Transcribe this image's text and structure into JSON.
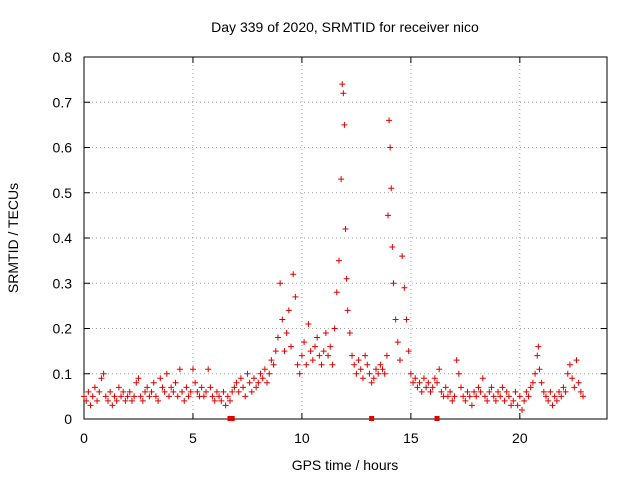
{
  "chart_data": {
    "type": "scatter",
    "title": "Day 339 of 2020, SRMTID for receiver nico",
    "xlabel": "GPS time / hours",
    "ylabel": "SRMTID / TECUs",
    "xlim": [
      0,
      24
    ],
    "ylim": [
      0,
      0.8
    ],
    "x_ticks": [
      0,
      5,
      10,
      15,
      20
    ],
    "x_tick_labels": [
      "0",
      "5",
      "10",
      "15",
      "20"
    ],
    "y_ticks": [
      0,
      0.1,
      0.2,
      0.3,
      0.4,
      0.5,
      0.6,
      0.7,
      0.8
    ],
    "y_tick_labels": [
      "0",
      "0.1",
      "0.2",
      "0.3",
      "0.4",
      "0.5",
      "0.6",
      "0.7",
      "0.8"
    ],
    "grid": true,
    "marker": "+",
    "series_color": "#e00000",
    "axis_marks_x": [
      6.7,
      6.8,
      13.2,
      16.2
    ],
    "series": [
      {
        "name": "SRMTID",
        "points": [
          [
            0.0,
            0.05
          ],
          [
            0.1,
            0.04
          ],
          [
            0.2,
            0.06
          ],
          [
            0.3,
            0.03
          ],
          [
            0.4,
            0.05
          ],
          [
            0.5,
            0.07
          ],
          [
            0.6,
            0.04
          ],
          [
            0.7,
            0.06
          ],
          [
            0.8,
            0.09
          ],
          [
            0.9,
            0.1
          ],
          [
            1.0,
            0.05
          ],
          [
            1.1,
            0.04
          ],
          [
            1.2,
            0.06
          ],
          [
            1.3,
            0.03
          ],
          [
            1.4,
            0.05
          ],
          [
            1.5,
            0.04
          ],
          [
            1.6,
            0.07
          ],
          [
            1.7,
            0.05
          ],
          [
            1.8,
            0.06
          ],
          [
            1.9,
            0.04
          ],
          [
            2.0,
            0.05
          ],
          [
            2.1,
            0.06
          ],
          [
            2.2,
            0.04
          ],
          [
            2.3,
            0.05
          ],
          [
            2.4,
            0.08
          ],
          [
            2.5,
            0.09
          ],
          [
            2.6,
            0.05
          ],
          [
            2.7,
            0.04
          ],
          [
            2.8,
            0.06
          ],
          [
            2.9,
            0.07
          ],
          [
            3.0,
            0.05
          ],
          [
            3.1,
            0.06
          ],
          [
            3.2,
            0.08
          ],
          [
            3.3,
            0.05
          ],
          [
            3.4,
            0.04
          ],
          [
            3.5,
            0.09
          ],
          [
            3.6,
            0.07
          ],
          [
            3.7,
            0.06
          ],
          [
            3.8,
            0.1
          ],
          [
            3.9,
            0.05
          ],
          [
            4.0,
            0.07
          ],
          [
            4.1,
            0.06
          ],
          [
            4.2,
            0.08
          ],
          [
            4.3,
            0.05
          ],
          [
            4.4,
            0.11
          ],
          [
            4.5,
            0.06
          ],
          [
            4.6,
            0.04
          ],
          [
            4.7,
            0.07
          ],
          [
            4.8,
            0.05
          ],
          [
            4.9,
            0.06
          ],
          [
            5.0,
            0.11
          ],
          [
            5.1,
            0.08
          ],
          [
            5.2,
            0.06
          ],
          [
            5.3,
            0.05
          ],
          [
            5.4,
            0.07
          ],
          [
            5.5,
            0.05
          ],
          [
            5.6,
            0.06
          ],
          [
            5.7,
            0.11
          ],
          [
            5.8,
            0.07
          ],
          [
            5.9,
            0.05
          ],
          [
            6.0,
            0.04
          ],
          [
            6.1,
            0.06
          ],
          [
            6.2,
            0.05
          ],
          [
            6.3,
            0.04
          ],
          [
            6.4,
            0.06
          ],
          [
            6.5,
            0.03
          ],
          [
            6.6,
            0.05
          ],
          [
            6.7,
            0.04
          ],
          [
            6.8,
            0.06
          ],
          [
            6.9,
            0.07
          ],
          [
            7.0,
            0.08
          ],
          [
            7.1,
            0.06
          ],
          [
            7.2,
            0.09
          ],
          [
            7.3,
            0.07
          ],
          [
            7.4,
            0.05
          ],
          [
            7.5,
            0.1
          ],
          [
            7.6,
            0.08
          ],
          [
            7.7,
            0.06
          ],
          [
            7.8,
            0.09
          ],
          [
            7.9,
            0.07
          ],
          [
            8.0,
            0.08
          ],
          [
            8.1,
            0.1
          ],
          [
            8.2,
            0.09
          ],
          [
            8.3,
            0.11
          ],
          [
            8.4,
            0.08
          ],
          [
            8.5,
            0.1
          ],
          [
            8.6,
            0.13
          ],
          [
            8.7,
            0.12
          ],
          [
            8.8,
            0.15
          ],
          [
            8.9,
            0.18
          ],
          [
            9.0,
            0.3
          ],
          [
            9.1,
            0.22
          ],
          [
            9.2,
            0.15
          ],
          [
            9.3,
            0.19
          ],
          [
            9.4,
            0.24
          ],
          [
            9.5,
            0.16
          ],
          [
            9.6,
            0.32
          ],
          [
            9.7,
            0.27
          ],
          [
            9.8,
            0.12
          ],
          [
            9.9,
            0.1
          ],
          [
            10.0,
            0.14
          ],
          [
            10.1,
            0.17
          ],
          [
            10.2,
            0.12
          ],
          [
            10.3,
            0.21
          ],
          [
            10.4,
            0.15
          ],
          [
            10.5,
            0.13
          ],
          [
            10.6,
            0.16
          ],
          [
            10.7,
            0.18
          ],
          [
            10.8,
            0.14
          ],
          [
            10.9,
            0.12
          ],
          [
            11.0,
            0.15
          ],
          [
            11.1,
            0.19
          ],
          [
            11.2,
            0.14
          ],
          [
            11.3,
            0.16
          ],
          [
            11.4,
            0.12
          ],
          [
            11.5,
            0.2
          ],
          [
            11.6,
            0.28
          ],
          [
            11.7,
            0.35
          ],
          [
            11.8,
            0.53
          ],
          [
            11.85,
            0.74
          ],
          [
            11.9,
            0.72
          ],
          [
            11.95,
            0.65
          ],
          [
            12.0,
            0.42
          ],
          [
            12.05,
            0.31
          ],
          [
            12.1,
            0.24
          ],
          [
            12.2,
            0.19
          ],
          [
            12.3,
            0.14
          ],
          [
            12.4,
            0.12
          ],
          [
            12.5,
            0.1
          ],
          [
            12.6,
            0.13
          ],
          [
            12.7,
            0.11
          ],
          [
            12.8,
            0.09
          ],
          [
            12.9,
            0.14
          ],
          [
            13.0,
            0.12
          ],
          [
            13.1,
            0.1
          ],
          [
            13.2,
            0.08
          ],
          [
            13.3,
            0.09
          ],
          [
            13.4,
            0.11
          ],
          [
            13.5,
            0.1
          ],
          [
            13.6,
            0.12
          ],
          [
            13.7,
            0.11
          ],
          [
            13.8,
            0.1
          ],
          [
            13.9,
            0.14
          ],
          [
            13.95,
            0.45
          ],
          [
            14.0,
            0.66
          ],
          [
            14.05,
            0.6
          ],
          [
            14.1,
            0.51
          ],
          [
            14.15,
            0.38
          ],
          [
            14.2,
            0.3
          ],
          [
            14.3,
            0.22
          ],
          [
            14.4,
            0.17
          ],
          [
            14.5,
            0.13
          ],
          [
            14.6,
            0.36
          ],
          [
            14.7,
            0.29
          ],
          [
            14.8,
            0.22
          ],
          [
            14.9,
            0.15
          ],
          [
            15.0,
            0.1
          ],
          [
            15.1,
            0.08
          ],
          [
            15.2,
            0.09
          ],
          [
            15.3,
            0.07
          ],
          [
            15.4,
            0.08
          ],
          [
            15.5,
            0.06
          ],
          [
            15.6,
            0.09
          ],
          [
            15.7,
            0.07
          ],
          [
            15.8,
            0.08
          ],
          [
            15.9,
            0.06
          ],
          [
            16.0,
            0.07
          ],
          [
            16.1,
            0.09
          ],
          [
            16.2,
            0.08
          ],
          [
            16.3,
            0.11
          ],
          [
            16.4,
            0.06
          ],
          [
            16.5,
            0.05
          ],
          [
            16.6,
            0.07
          ],
          [
            16.7,
            0.05
          ],
          [
            16.8,
            0.06
          ],
          [
            16.9,
            0.04
          ],
          [
            17.0,
            0.05
          ],
          [
            17.1,
            0.13
          ],
          [
            17.2,
            0.1
          ],
          [
            17.3,
            0.07
          ],
          [
            17.4,
            0.05
          ],
          [
            17.5,
            0.04
          ],
          [
            17.6,
            0.06
          ],
          [
            17.7,
            0.05
          ],
          [
            17.8,
            0.03
          ],
          [
            17.9,
            0.06
          ],
          [
            18.0,
            0.05
          ],
          [
            18.1,
            0.07
          ],
          [
            18.2,
            0.06
          ],
          [
            18.3,
            0.09
          ],
          [
            18.4,
            0.05
          ],
          [
            18.5,
            0.04
          ],
          [
            18.6,
            0.06
          ],
          [
            18.7,
            0.07
          ],
          [
            18.8,
            0.05
          ],
          [
            18.9,
            0.04
          ],
          [
            19.0,
            0.06
          ],
          [
            19.1,
            0.05
          ],
          [
            19.2,
            0.07
          ],
          [
            19.3,
            0.04
          ],
          [
            19.4,
            0.06
          ],
          [
            19.5,
            0.05
          ],
          [
            19.6,
            0.03
          ],
          [
            19.7,
            0.04
          ],
          [
            19.8,
            0.06
          ],
          [
            19.9,
            0.03
          ],
          [
            20.0,
            0.05
          ],
          [
            20.1,
            0.02
          ],
          [
            20.2,
            0.04
          ],
          [
            20.3,
            0.06
          ],
          [
            20.4,
            0.05
          ],
          [
            20.5,
            0.07
          ],
          [
            20.6,
            0.08
          ],
          [
            20.7,
            0.1
          ],
          [
            20.8,
            0.14
          ],
          [
            20.85,
            0.16
          ],
          [
            20.9,
            0.11
          ],
          [
            21.0,
            0.08
          ],
          [
            21.1,
            0.06
          ],
          [
            21.2,
            0.05
          ],
          [
            21.3,
            0.04
          ],
          [
            21.4,
            0.06
          ],
          [
            21.5,
            0.03
          ],
          [
            21.6,
            0.05
          ],
          [
            21.7,
            0.04
          ],
          [
            21.8,
            0.06
          ],
          [
            21.9,
            0.05
          ],
          [
            22.0,
            0.07
          ],
          [
            22.1,
            0.06
          ],
          [
            22.2,
            0.1
          ],
          [
            22.3,
            0.12
          ],
          [
            22.4,
            0.09
          ],
          [
            22.5,
            0.07
          ],
          [
            22.6,
            0.13
          ],
          [
            22.7,
            0.08
          ],
          [
            22.8,
            0.06
          ],
          [
            22.9,
            0.05
          ]
        ]
      }
    ]
  }
}
